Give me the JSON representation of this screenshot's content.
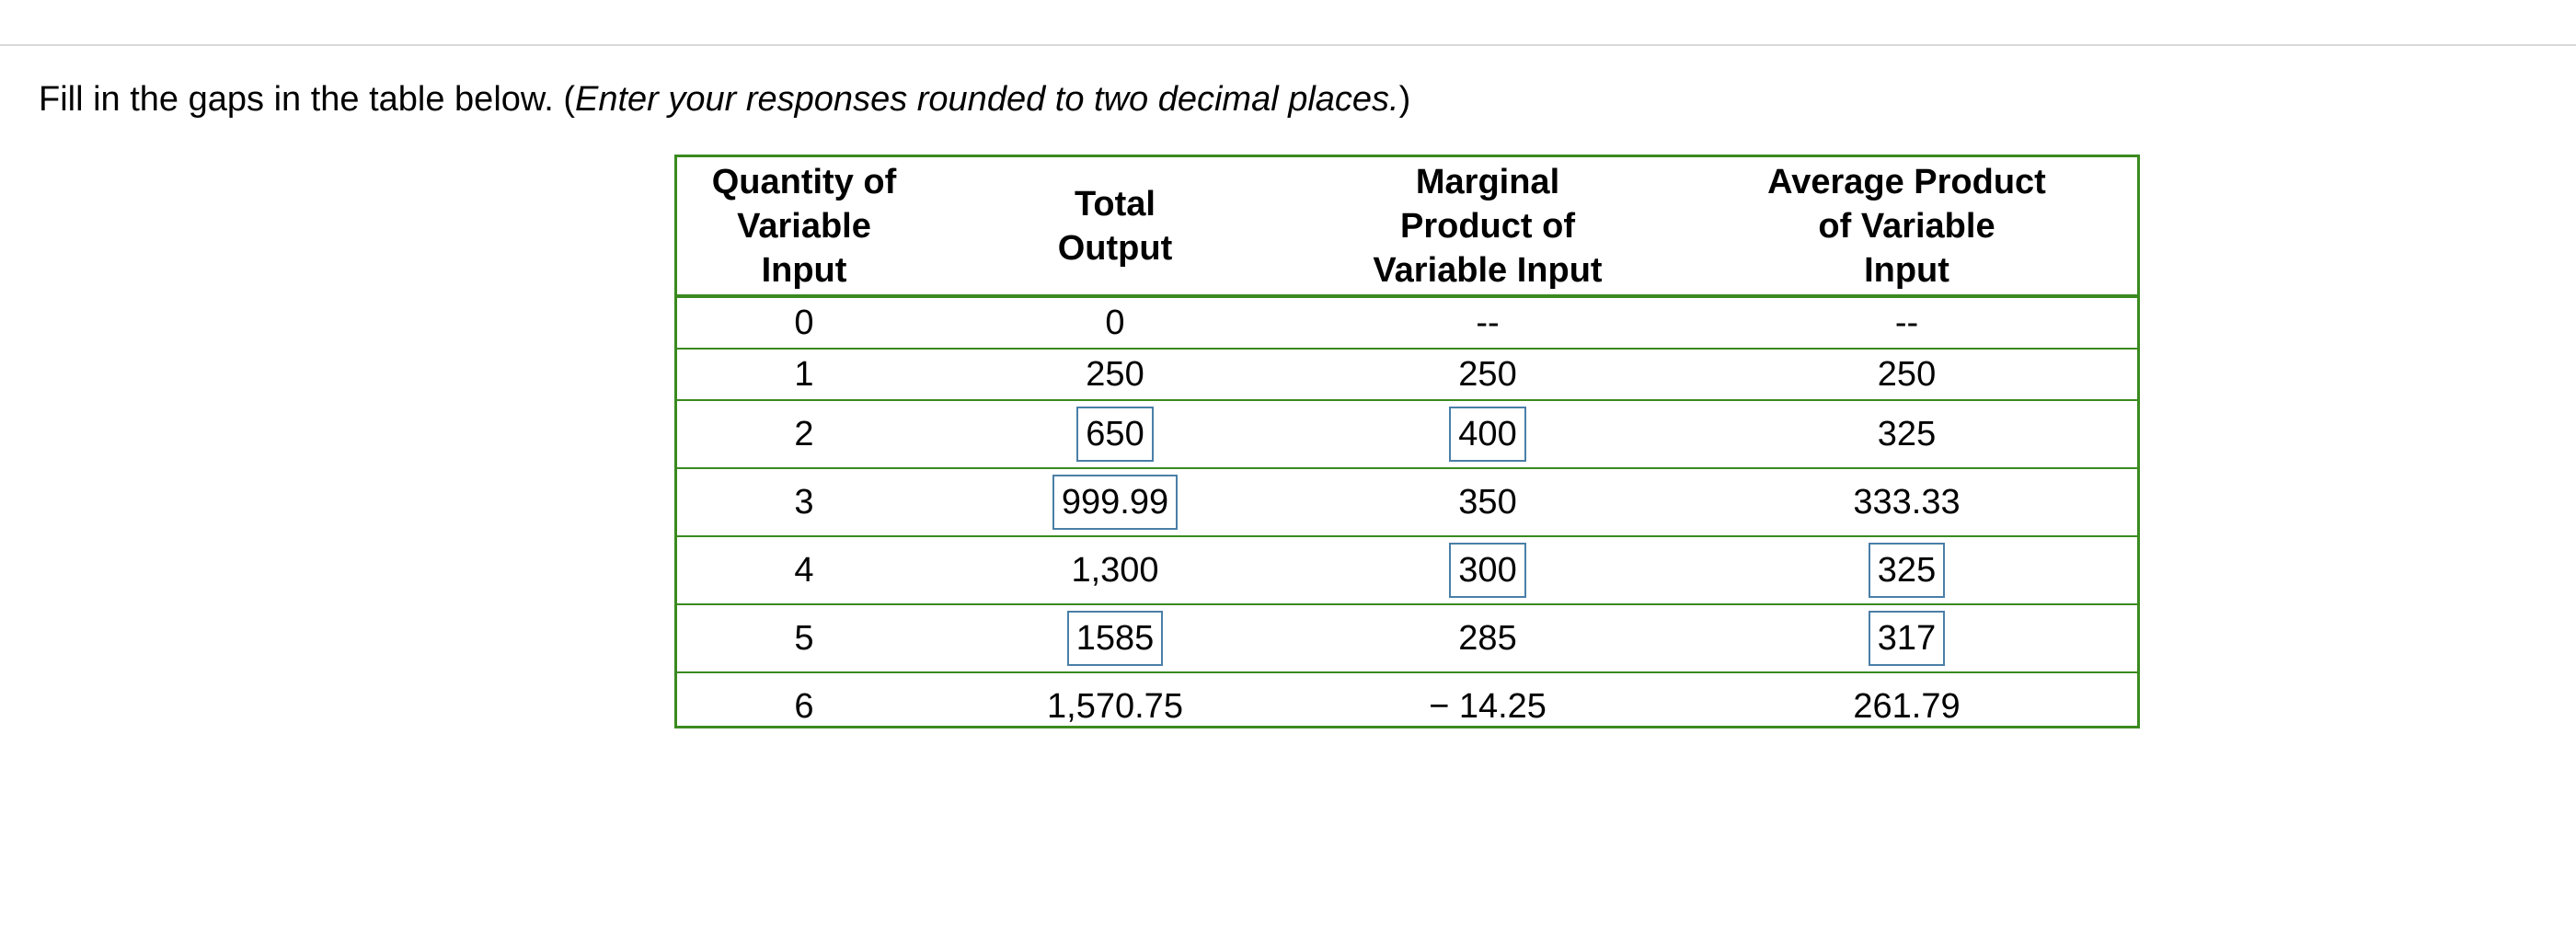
{
  "instruction": {
    "lead": "Fill in the gaps in the table below. (",
    "italic": "Enter your responses rounded to two decimal places.",
    "trail": ")"
  },
  "table": {
    "headers": [
      [
        "Quantity of",
        "Variable",
        "Input"
      ],
      [
        "Total",
        "Output"
      ],
      [
        "Marginal",
        "Product of",
        "Variable Input"
      ],
      [
        "Average Product",
        "of Variable",
        "Input"
      ]
    ],
    "rows": [
      {
        "q": "0",
        "total": "0",
        "total_input": false,
        "mp": "--",
        "mp_input": false,
        "ap": "--",
        "ap_input": false
      },
      {
        "q": "1",
        "total": "250",
        "total_input": false,
        "mp": "250",
        "mp_input": false,
        "ap": "250",
        "ap_input": false
      },
      {
        "q": "2",
        "total": "650",
        "total_input": true,
        "mp": "400",
        "mp_input": true,
        "ap": "325",
        "ap_input": false
      },
      {
        "q": "3",
        "total": "999.99",
        "total_input": true,
        "mp": "350",
        "mp_input": false,
        "ap": "333.33",
        "ap_input": false
      },
      {
        "q": "4",
        "total": "1,300",
        "total_input": false,
        "mp": "300",
        "mp_input": true,
        "ap": "325",
        "ap_input": true
      },
      {
        "q": "5",
        "total": "1585",
        "total_input": true,
        "mp": "285",
        "mp_input": false,
        "ap": "317",
        "ap_input": true
      },
      {
        "q": "6",
        "total": "1,570.75",
        "total_input": false,
        "mp": "− 14.25",
        "mp_input": false,
        "ap": "261.79",
        "ap_input": false
      }
    ]
  },
  "colors": {
    "table_border": "#3a8a1f",
    "input_border": "#4a7fa8",
    "top_rule": "#d9d9d9"
  }
}
